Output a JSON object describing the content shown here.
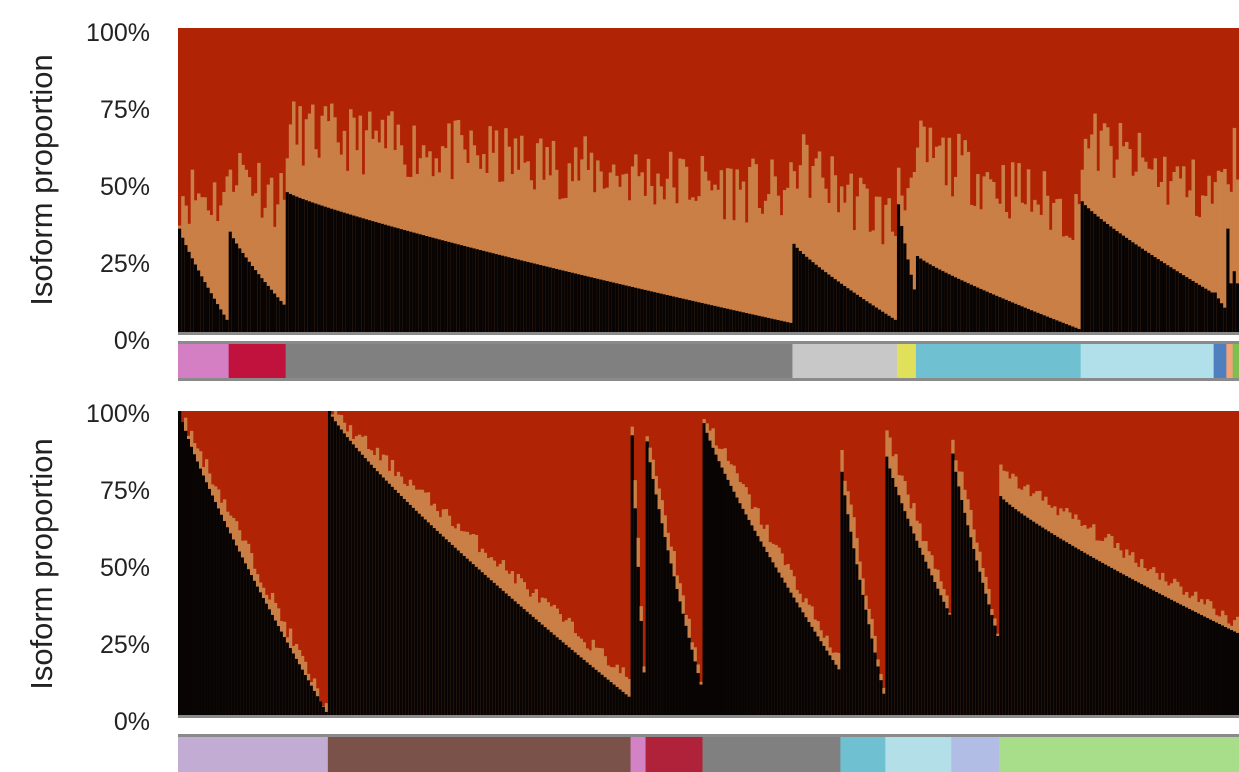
{
  "colors": {
    "isoform_1": "#080403",
    "isoform_2": "#c97f45",
    "isoform_3": "#b02305",
    "axis_line": "#8a8a8a"
  },
  "chart_data": [
    {
      "type": "bar",
      "stacked": true,
      "normalized": true,
      "ylabel": "Isoform proportion",
      "yticks": [
        "0%",
        "25%",
        "50%",
        "75%",
        "100%"
      ],
      "ylim": [
        0,
        100
      ],
      "grid": false,
      "legend": "none",
      "series_colors": [
        "#080403",
        "#c97f45",
        "#b02305"
      ],
      "groups": [
        {
          "color": "#d47fc4",
          "n": 16,
          "lower": [
            34,
            4
          ],
          "upper": [
            46,
            44
          ]
        },
        {
          "color": "#c1123e",
          "n": 18,
          "lower": [
            33,
            9
          ],
          "upper": [
            56,
            43
          ]
        },
        {
          "color": "#808080",
          "n": 160,
          "lower": [
            46,
            3
          ],
          "upper": [
            66,
            45
          ]
        },
        {
          "color": "#c8c8c8",
          "n": 33,
          "lower": [
            29,
            4
          ],
          "upper": [
            57,
            35
          ]
        },
        {
          "color": "#e0e05a",
          "n": 6,
          "lower": [
            42,
            14
          ],
          "upper": [
            54,
            42
          ]
        },
        {
          "color": "#6fc1d1",
          "n": 52,
          "lower": [
            25,
            1
          ],
          "upper": [
            60,
            38
          ]
        },
        {
          "color": "#b2e0ea",
          "n": 42,
          "lower": [
            43,
            13
          ],
          "upper": [
            64,
            44
          ]
        },
        {
          "color": "#4f7fbf",
          "n": 4,
          "lower": [
            13,
            8
          ],
          "upper": [
            50,
            46
          ]
        },
        {
          "color": "#f2a37a",
          "n": 2,
          "lower": [
            34,
            16
          ],
          "upper": [
            58,
            50
          ]
        },
        {
          "color": "#7fbf4f",
          "n": 2,
          "lower": [
            20,
            16
          ],
          "upper": [
            58,
            56
          ]
        }
      ]
    },
    {
      "type": "bar",
      "stacked": true,
      "normalized": true,
      "ylabel": "Isoform proportion",
      "yticks": [
        "0%",
        "25%",
        "50%",
        "75%",
        "100%"
      ],
      "ylim": [
        0,
        100
      ],
      "grid": false,
      "legend": "none",
      "series_colors": [
        "#080403",
        "#c97f45",
        "#b02305"
      ],
      "groups": [
        {
          "color": "#c2acd4",
          "n": 50,
          "lower": [
            100,
            1
          ],
          "upper": [
            100,
            2
          ]
        },
        {
          "color": "#7a524a",
          "n": 101,
          "lower": [
            100,
            6
          ],
          "upper": [
            100,
            12
          ]
        },
        {
          "color": "#d482c6",
          "n": 5,
          "lower": [
            92,
            14
          ],
          "upper": [
            96,
            16
          ]
        },
        {
          "color": "#b0223a",
          "n": 19,
          "lower": [
            90,
            10
          ],
          "upper": [
            93,
            12
          ]
        },
        {
          "color": "#808080",
          "n": 46,
          "lower": [
            96,
            15
          ],
          "upper": [
            98,
            18
          ]
        },
        {
          "color": "#6fc1d1",
          "n": 15,
          "lower": [
            80,
            7
          ],
          "upper": [
            85,
            8
          ]
        },
        {
          "color": "#b2dfe8",
          "n": 22,
          "lower": [
            85,
            33
          ],
          "upper": [
            92,
            35
          ]
        },
        {
          "color": "#b2bde6",
          "n": 16,
          "lower": [
            86,
            26
          ],
          "upper": [
            90,
            28
          ]
        },
        {
          "color": "#a8dd8a",
          "n": 80,
          "lower": [
            72,
            27
          ],
          "upper": [
            80,
            30
          ]
        }
      ]
    }
  ]
}
